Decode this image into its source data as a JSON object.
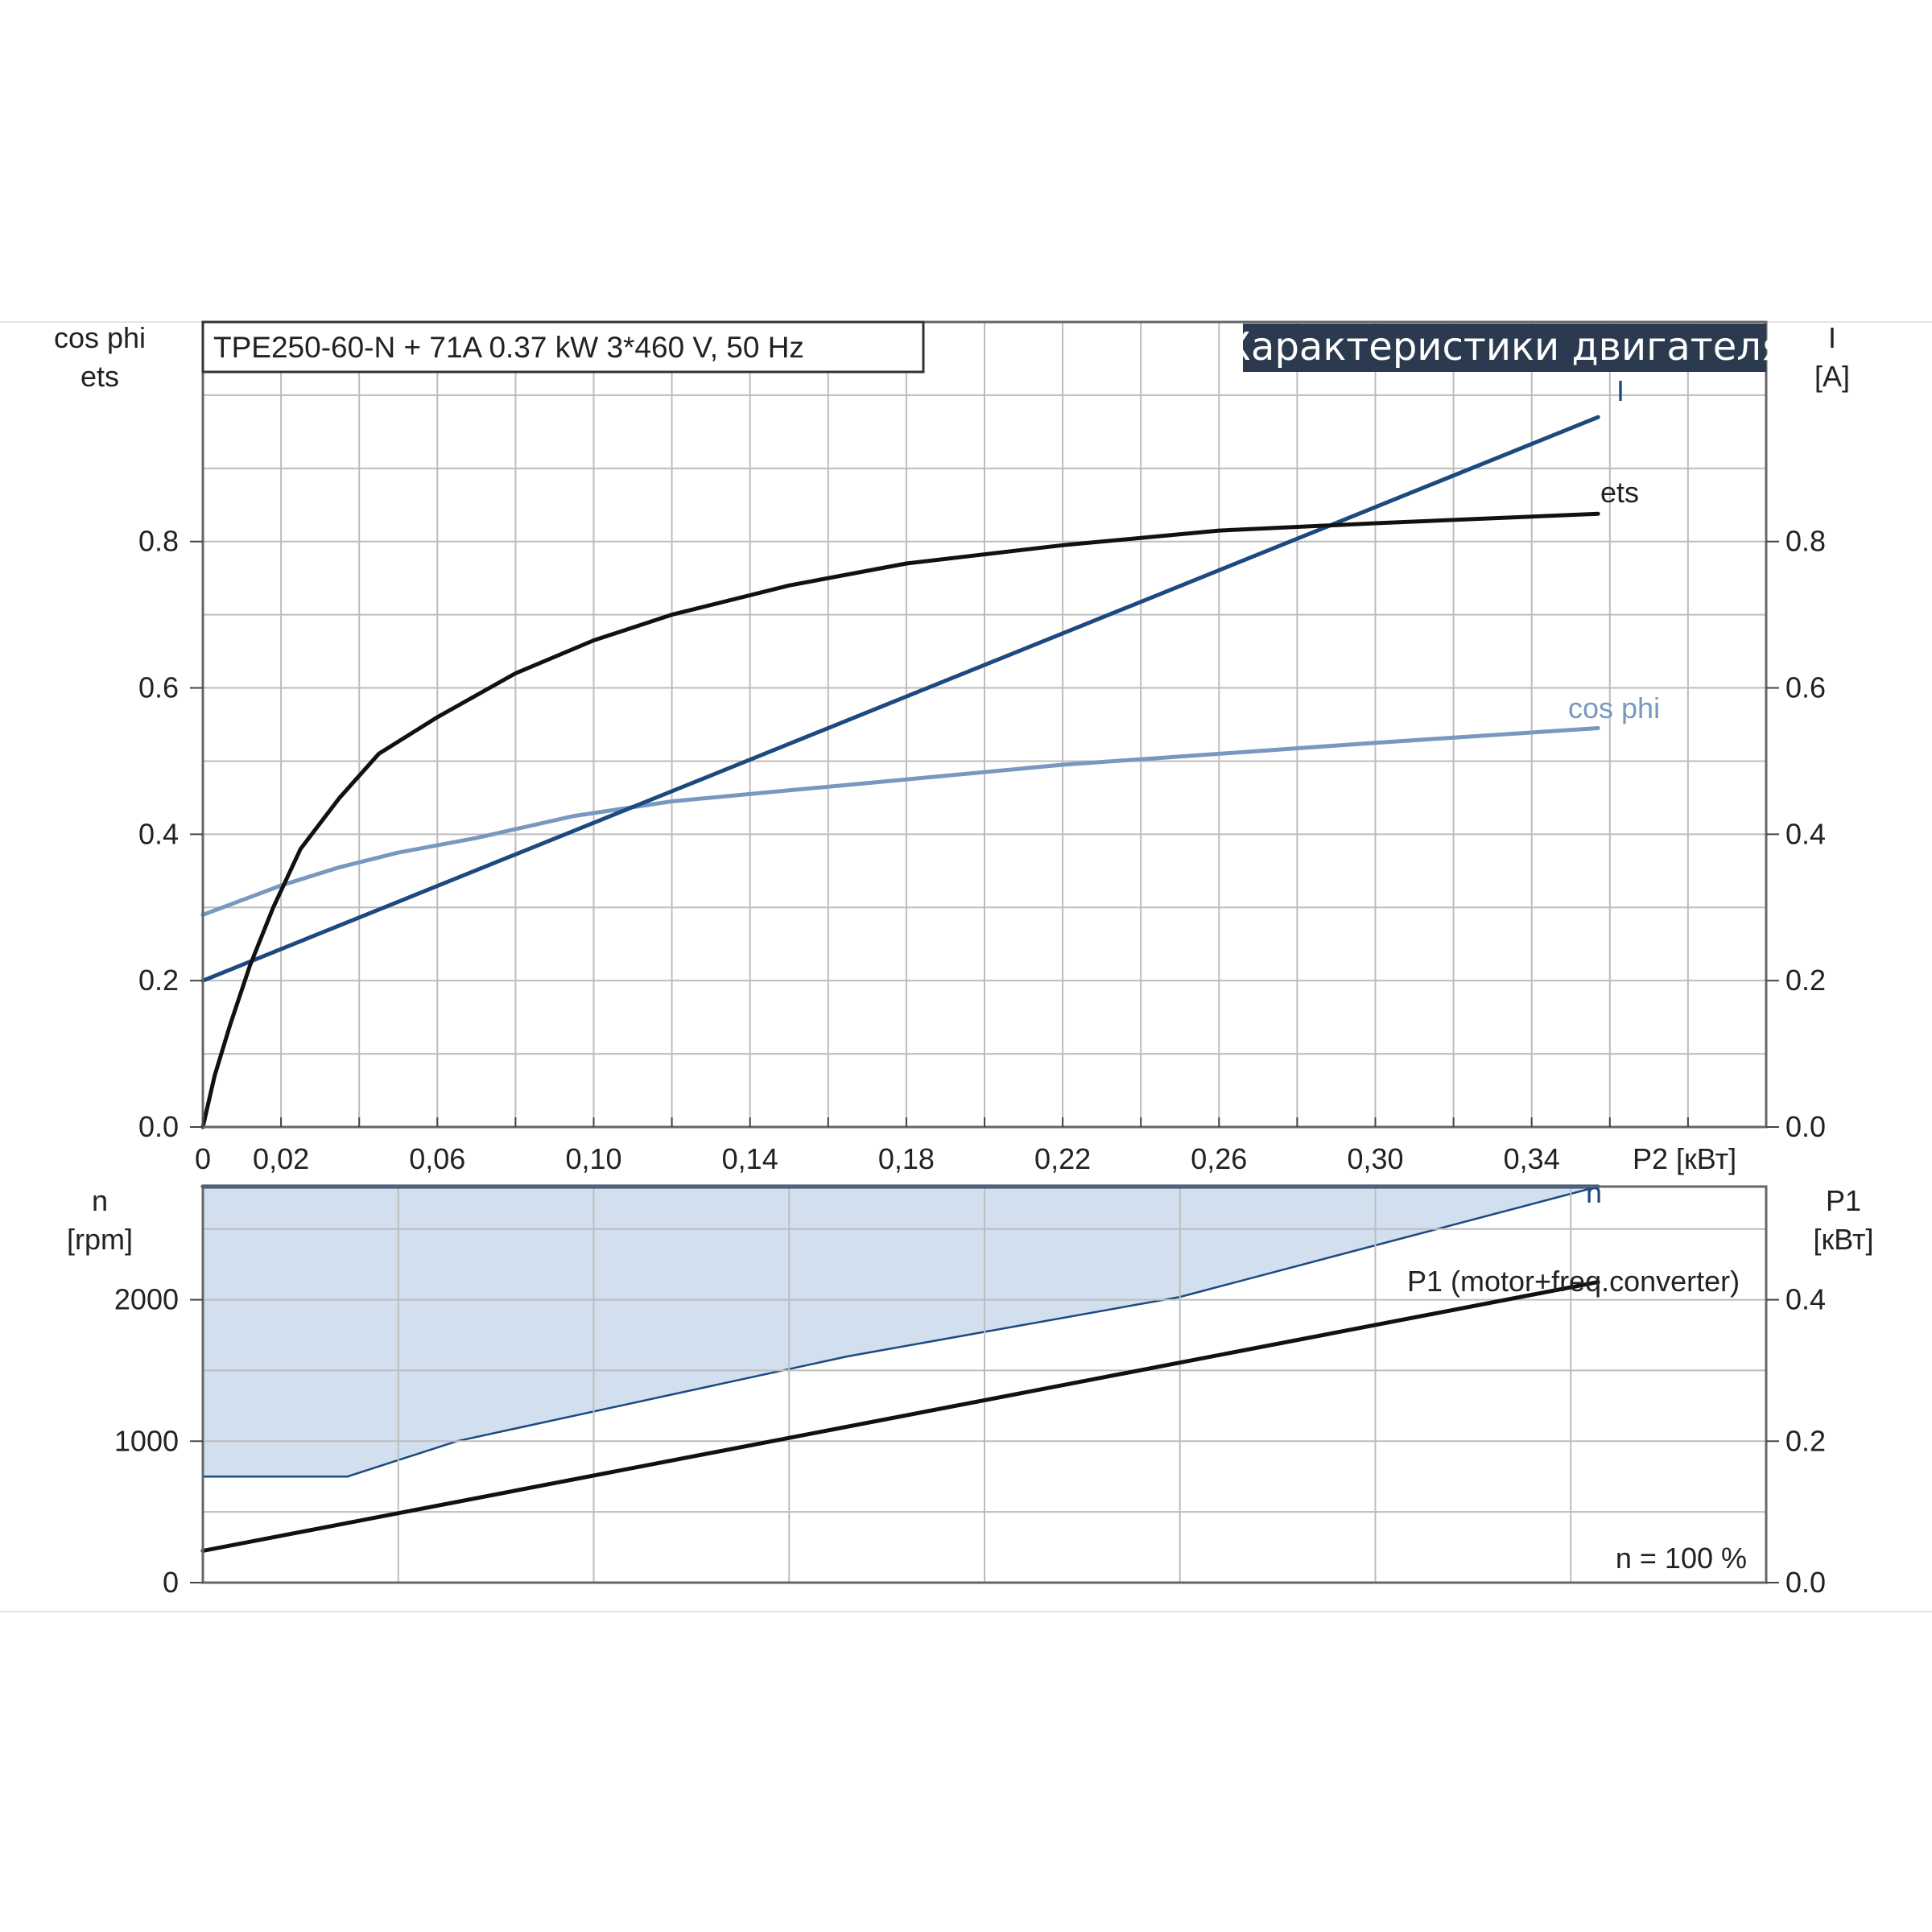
{
  "header": {
    "info": "TPE250-60-N + 71A   0.37 kW   3*460 V, 50 Hz",
    "title": "Характеристики двигателя"
  },
  "chart_data": [
    {
      "type": "line",
      "left_axis_title": [
        "cos phi",
        "ets"
      ],
      "right_axis_title": [
        "I",
        "[A]"
      ],
      "xlabel": "P2 [кВт]",
      "xlim": [
        0,
        0.4
      ],
      "ylim_left": [
        0,
        1.1
      ],
      "ylim_right": [
        0,
        1.1
      ],
      "x_tick_labels": [
        "0",
        "0,02",
        "0,06",
        "0,10",
        "0,14",
        "0,18",
        "0,22",
        "0,26",
        "0,30",
        "0,34"
      ],
      "x_tick_values": [
        0,
        0.02,
        0.06,
        0.1,
        0.14,
        0.18,
        0.22,
        0.26,
        0.3,
        0.34
      ],
      "y_ticks_left": [
        "0.0",
        "0.2",
        "0.4",
        "0.6",
        "0.8"
      ],
      "y_ticks_right": [
        "0.0",
        "0.2",
        "0.4",
        "0.6",
        "0.8"
      ],
      "grid": true,
      "series": [
        {
          "name": "ets",
          "color": "#111111",
          "x": [
            0,
            0.003,
            0.007,
            0.012,
            0.018,
            0.025,
            0.035,
            0.045,
            0.06,
            0.08,
            0.1,
            0.12,
            0.15,
            0.18,
            0.22,
            0.26,
            0.3,
            0.357
          ],
          "y": [
            0.0,
            0.07,
            0.14,
            0.22,
            0.3,
            0.38,
            0.45,
            0.51,
            0.56,
            0.62,
            0.665,
            0.7,
            0.74,
            0.77,
            0.795,
            0.815,
            0.825,
            0.838
          ]
        },
        {
          "name": "I",
          "color": "#1c4a80",
          "x": [
            0,
            0.357
          ],
          "y": [
            0.2,
            0.97
          ]
        },
        {
          "name": "cos phi",
          "color": "#7799bf",
          "x": [
            0,
            0.01,
            0.02,
            0.035,
            0.05,
            0.07,
            0.095,
            0.12,
            0.15,
            0.18,
            0.22,
            0.26,
            0.3,
            0.357
          ],
          "y": [
            0.29,
            0.31,
            0.33,
            0.355,
            0.375,
            0.395,
            0.425,
            0.445,
            0.46,
            0.475,
            0.495,
            0.51,
            0.525,
            0.545
          ]
        }
      ]
    },
    {
      "type": "area",
      "left_axis_title": [
        "n",
        "[rpm]"
      ],
      "right_axis_title": [
        "P1",
        "[кВт]"
      ],
      "xlim": [
        0,
        0.4
      ],
      "ylim_left": [
        0,
        2800
      ],
      "ylim_right": [
        0,
        0.56
      ],
      "y_ticks_left": [
        "0",
        "1000",
        "2000"
      ],
      "y_ticks_right": [
        "0.0",
        "0.2",
        "0.4"
      ],
      "grid": true,
      "annotation": "n = 100 %",
      "area": {
        "color": "#d1dfee",
        "edge_color": "#1c4a80",
        "top_x": [
          0,
          0.357
        ],
        "top_y": [
          2800,
          2800
        ],
        "lower_x": [
          0,
          0.037,
          0.065,
          0.165,
          0.25,
          0.357
        ],
        "lower_y": [
          750,
          750,
          1000,
          1600,
          2020,
          2800
        ]
      },
      "series": [
        {
          "name": "n",
          "color": "#1c4a80",
          "axis": "left",
          "x": [
            0,
            0.357
          ],
          "y": [
            2800,
            2800
          ]
        },
        {
          "name": "P1 (motor+freq.converter)",
          "color": "#111111",
          "axis": "right",
          "x": [
            0,
            0.357
          ],
          "y": [
            0.045,
            0.425
          ]
        }
      ]
    }
  ]
}
